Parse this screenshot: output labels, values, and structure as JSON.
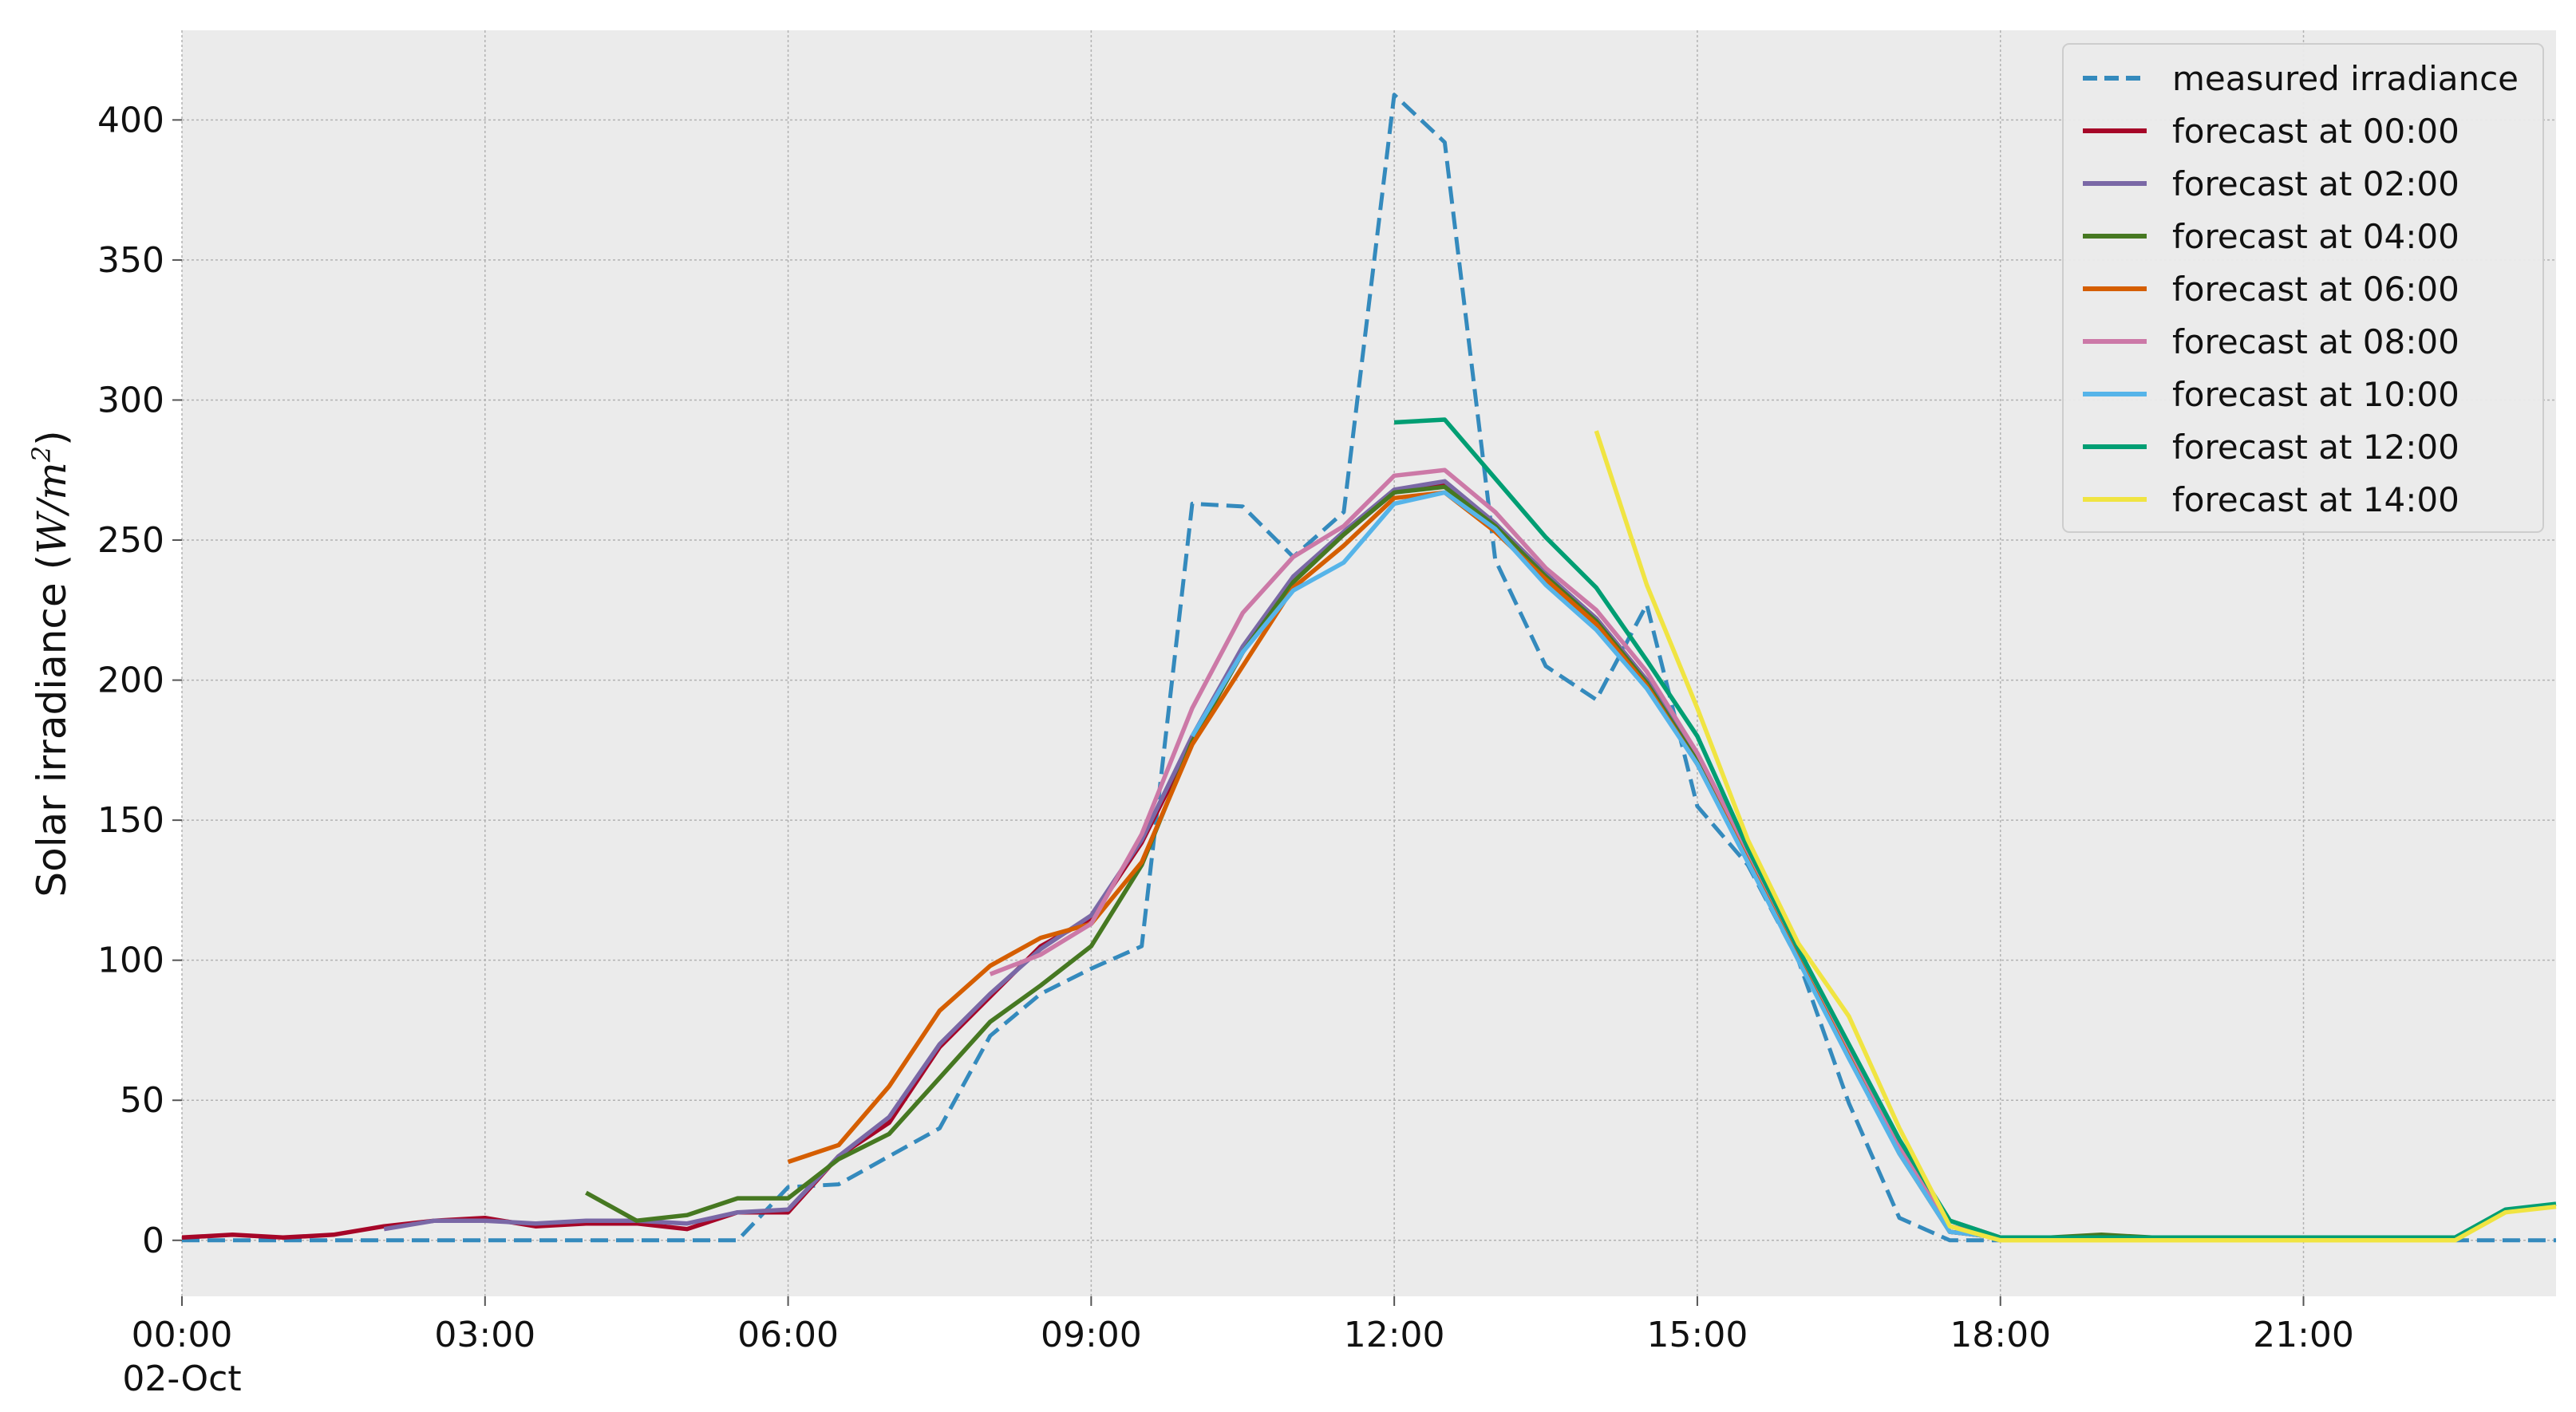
{
  "chart_data": {
    "type": "line",
    "title": "",
    "xlabel": "",
    "ylabel": "Solar irradiance",
    "ylabel_unit_math": "W/m",
    "ylabel_unit_exponent": "2",
    "ylim": [
      -20,
      432
    ],
    "xlim_hours": [
      0,
      23.5
    ],
    "x_ticks": [
      {
        "hour": 0,
        "label": "00:00",
        "sublabel": "02-Oct"
      },
      {
        "hour": 3,
        "label": "03:00",
        "sublabel": ""
      },
      {
        "hour": 6,
        "label": "06:00",
        "sublabel": ""
      },
      {
        "hour": 9,
        "label": "09:00",
        "sublabel": ""
      },
      {
        "hour": 12,
        "label": "12:00",
        "sublabel": ""
      },
      {
        "hour": 15,
        "label": "15:00",
        "sublabel": ""
      },
      {
        "hour": 18,
        "label": "18:00",
        "sublabel": ""
      },
      {
        "hour": 21,
        "label": "21:00",
        "sublabel": ""
      }
    ],
    "y_ticks": [
      0,
      50,
      100,
      150,
      200,
      250,
      300,
      350,
      400
    ],
    "grid": true,
    "background": "#ebebeb",
    "legend_position": "top-right",
    "series": [
      {
        "name": "measured irradiance",
        "color": "#348abd",
        "dashed": true,
        "x": [
          0,
          0.5,
          1,
          1.5,
          2,
          2.5,
          3,
          3.5,
          4,
          4.5,
          5,
          5.5,
          6,
          6.5,
          7,
          7.5,
          8,
          8.5,
          9,
          9.5,
          10,
          10.5,
          11,
          11.5,
          12,
          12.5,
          13,
          13.5,
          14,
          14.5,
          15,
          15.5,
          16,
          16.5,
          17,
          17.5,
          18,
          18.5,
          19,
          19.5,
          20,
          20.5,
          21,
          21.5,
          22,
          22.5,
          23,
          23.5
        ],
        "y": [
          0,
          0,
          0,
          0,
          0,
          0,
          0,
          0,
          0,
          0,
          0,
          0,
          19,
          20,
          30,
          40,
          73,
          88,
          97,
          105,
          263,
          262,
          244,
          260,
          409,
          392,
          243,
          205,
          193,
          227,
          155,
          134,
          100,
          49,
          8,
          0,
          0,
          0,
          0,
          0,
          0,
          0,
          0,
          0,
          0,
          0,
          0,
          0
        ]
      },
      {
        "name": "forecast at 00:00",
        "color": "#a60628",
        "dashed": false,
        "x": [
          0,
          0.5,
          1,
          1.5,
          2,
          2.5,
          3,
          3.5,
          4,
          4.5,
          5,
          5.5,
          6,
          6.5,
          7,
          7.5,
          8,
          8.5,
          9,
          9.5,
          10,
          10.5,
          11,
          11.5,
          12,
          12.5,
          13,
          13.5,
          14,
          14.5,
          15,
          15.5,
          16,
          16.5,
          17,
          17.5,
          18
        ],
        "y": [
          1,
          2,
          1,
          2,
          5,
          7,
          8,
          5,
          6,
          6,
          4,
          10,
          10,
          30,
          42,
          69,
          87,
          105,
          115,
          142,
          178,
          210,
          236,
          252,
          267,
          270,
          256,
          238,
          222,
          200,
          172,
          137,
          102,
          67,
          32,
          3,
          1
        ]
      },
      {
        "name": "forecast at 02:00",
        "color": "#7a68a6",
        "dashed": false,
        "x": [
          2,
          2.5,
          3,
          3.5,
          4,
          4.5,
          5,
          5.5,
          6,
          6.5,
          7,
          7.5,
          8,
          8.5,
          9,
          9.5,
          10,
          10.5,
          11,
          11.5,
          12,
          12.5,
          13,
          13.5,
          14,
          14.5,
          15,
          15.5,
          16,
          16.5,
          17,
          17.5,
          18
        ],
        "y": [
          4,
          7,
          7,
          6,
          7,
          7,
          6,
          10,
          11,
          30,
          44,
          70,
          88,
          104,
          116,
          143,
          180,
          212,
          237,
          253,
          268,
          271,
          256,
          238,
          222,
          200,
          172,
          137,
          102,
          67,
          32,
          3,
          1
        ]
      },
      {
        "name": "forecast at 04:00",
        "color": "#467821",
        "dashed": false,
        "x": [
          4,
          4.5,
          5,
          5.5,
          6,
          6.5,
          7,
          7.5,
          8,
          8.5,
          9,
          9.5,
          10,
          10.5,
          11,
          11.5,
          12,
          12.5,
          13,
          13.5,
          14,
          14.5,
          15,
          15.5,
          16,
          16.5,
          17,
          17.5,
          18,
          18.5,
          19,
          19.5
        ],
        "y": [
          17,
          7,
          9,
          15,
          15,
          29,
          38,
          58,
          78,
          91,
          105,
          134,
          178,
          210,
          235,
          252,
          267,
          269,
          255,
          237,
          221,
          199,
          171,
          137,
          102,
          67,
          32,
          7,
          1,
          1,
          2,
          1
        ]
      },
      {
        "name": "forecast at 06:00",
        "color": "#d55e00",
        "dashed": false,
        "x": [
          6,
          6.5,
          7,
          7.5,
          8,
          8.5,
          9,
          9.5,
          10,
          10.5,
          11,
          11.5,
          12,
          12.5,
          13,
          13.5,
          14,
          14.5,
          15,
          15.5,
          16,
          16.5,
          17,
          17.5,
          18
        ],
        "y": [
          28,
          34,
          55,
          82,
          98,
          108,
          113,
          135,
          177,
          205,
          233,
          248,
          265,
          267,
          253,
          236,
          220,
          198,
          170,
          136,
          101,
          66,
          31,
          3,
          1
        ]
      },
      {
        "name": "forecast at 08:00",
        "color": "#cc79a7",
        "dashed": false,
        "x": [
          8,
          8.5,
          9,
          9.5,
          10,
          10.5,
          11,
          11.5,
          12,
          12.5,
          13,
          13.5,
          14,
          14.5,
          15,
          15.5,
          16,
          16.5,
          17,
          17.5,
          18
        ],
        "y": [
          95,
          102,
          113,
          145,
          190,
          224,
          244,
          255,
          273,
          275,
          260,
          240,
          225,
          203,
          174,
          139,
          104,
          69,
          34,
          5,
          1
        ]
      },
      {
        "name": "forecast at 10:00",
        "color": "#56b4e9",
        "dashed": false,
        "x": [
          10,
          10.5,
          11,
          11.5,
          12,
          12.5,
          13,
          13.5,
          14,
          14.5,
          15,
          15.5,
          16,
          16.5,
          17,
          17.5,
          18
        ],
        "y": [
          180,
          210,
          232,
          242,
          263,
          267,
          254,
          234,
          218,
          197,
          170,
          135,
          100,
          65,
          31,
          3,
          1
        ]
      },
      {
        "name": "forecast at 12:00",
        "color": "#009e73",
        "dashed": false,
        "x": [
          12,
          12.5,
          13,
          13.5,
          14,
          14.5,
          15,
          15.5,
          16,
          16.5,
          17,
          17.5,
          18,
          18.5,
          19,
          19.5,
          20,
          20.5,
          21,
          21.5,
          22,
          22.5,
          23,
          23.5
        ],
        "y": [
          292,
          293,
          272,
          251,
          233,
          207,
          180,
          140,
          104,
          70,
          36,
          7,
          1,
          1,
          1,
          1,
          1,
          1,
          1,
          1,
          1,
          1,
          11,
          13
        ]
      },
      {
        "name": "forecast at 14:00",
        "color": "#f0e442",
        "dashed": false,
        "x": [
          14,
          14.5,
          15,
          15.5,
          16,
          16.5,
          17,
          17.5,
          18,
          18.5,
          19,
          19.5,
          20,
          20.5,
          21,
          21.5,
          22,
          22.5,
          23,
          23.5
        ],
        "y": [
          289,
          234,
          190,
          143,
          106,
          80,
          40,
          5,
          0,
          0,
          0,
          0,
          0,
          0,
          0,
          0,
          0,
          0,
          10,
          12
        ]
      }
    ]
  }
}
